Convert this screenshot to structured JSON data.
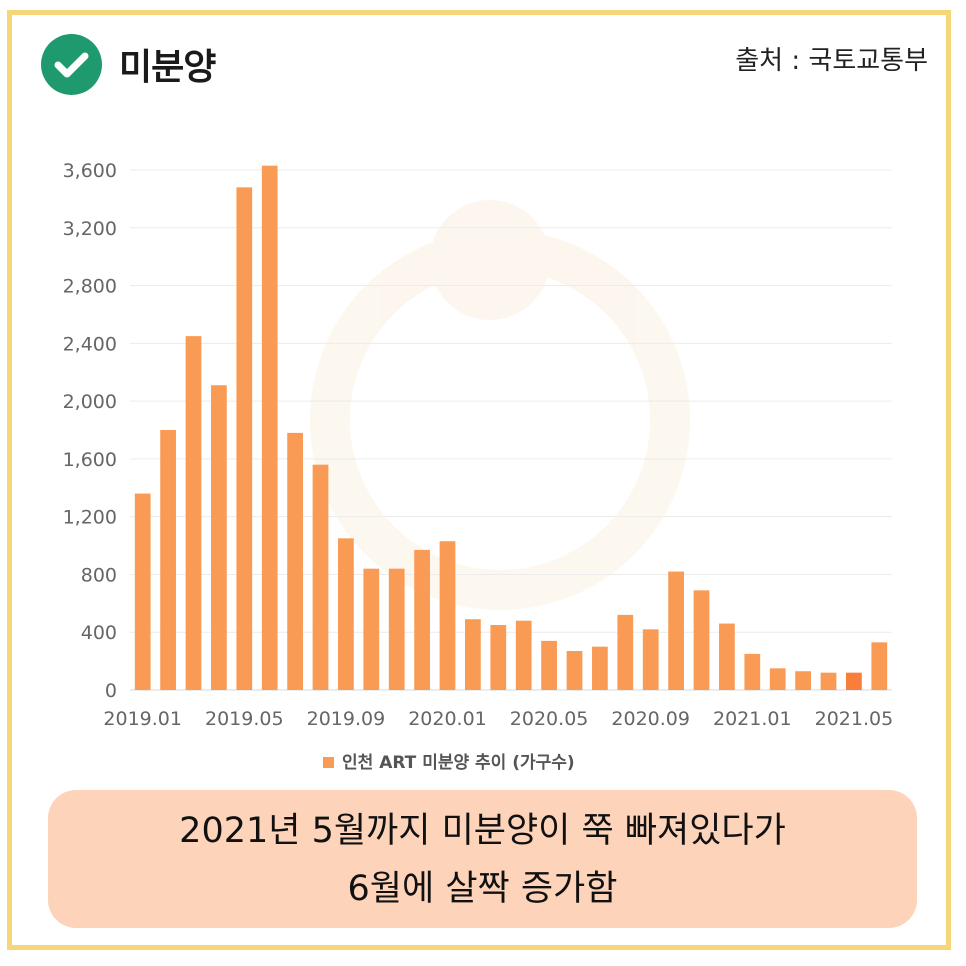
{
  "header": {
    "title": "미분양",
    "source": "출처 : 국토교통부",
    "check_icon": "check-circle-icon",
    "check_color": "#1f9a6e"
  },
  "chart_data": {
    "type": "bar",
    "categories": [
      "2019.01",
      "2019.02",
      "2019.03",
      "2019.04",
      "2019.05",
      "2019.06",
      "2019.07",
      "2019.08",
      "2019.09",
      "2019.10",
      "2019.11",
      "2019.12",
      "2020.01",
      "2020.02",
      "2020.03",
      "2020.04",
      "2020.05",
      "2020.06",
      "2020.07",
      "2020.08",
      "2020.09",
      "2020.10",
      "2020.11",
      "2020.12",
      "2021.01",
      "2021.02",
      "2021.03",
      "2021.04",
      "2021.05",
      "2021.06"
    ],
    "x_tick_labels": [
      "2019.01",
      "2019.05",
      "2019.09",
      "2020.01",
      "2020.05",
      "2020.09",
      "2021.01",
      "2021.05"
    ],
    "series": [
      {
        "name": "인천 ART 미분양 추이 (가구수)",
        "values": [
          1360,
          1800,
          2450,
          2110,
          3480,
          3630,
          1780,
          1560,
          1050,
          840,
          840,
          970,
          1030,
          490,
          450,
          480,
          340,
          270,
          300,
          520,
          420,
          820,
          690,
          460,
          250,
          150,
          130,
          120,
          120,
          330
        ],
        "color": "#f99b55"
      }
    ],
    "highlight_index": 28,
    "highlight_color": "#f97e3a",
    "y_ticks": [
      0,
      400,
      800,
      1200,
      1600,
      2000,
      2400,
      2800,
      3200,
      3600
    ],
    "ylim": [
      0,
      3600
    ],
    "grid": true,
    "legend_position": "bottom"
  },
  "caption": {
    "line1": "2021년 5월까지 미분양이 쭉 빠져있다가",
    "line2": "6월에 살짝 증가함",
    "background": "#fdd4b9"
  },
  "frame_color": "#f7d679"
}
